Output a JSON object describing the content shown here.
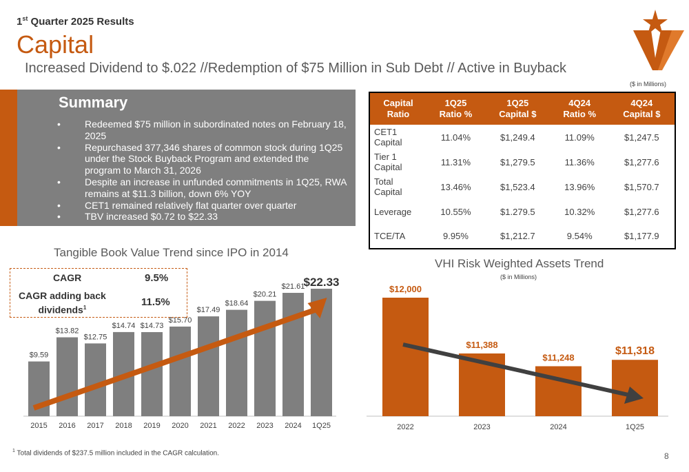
{
  "header": {
    "quarter_prefix": "1",
    "quarter_sup": "st",
    "quarter_rest": " Quarter 2025 Results",
    "title": "Capital",
    "subtitle": "Increased Dividend to $.022 //Redemption of $75 Million in Sub Debt // Active in Buyback",
    "units": "($ in Millions)"
  },
  "summary": {
    "title": "Summary",
    "items": [
      "Redeemed $75 million in subordinated notes on February 18, 2025",
      "Repurchased 377,346 shares of common stock during 1Q25 under the Stock Buyback Program and extended the program to March 31, 2026",
      "Despite an increase in unfunded commitments in 1Q25, RWA remains at $11.3 billion, down 6% YOY",
      "CET1 remained relatively flat quarter over quarter",
      "TBV increased $0.72 to $22.33"
    ]
  },
  "table": {
    "headers": [
      {
        "l1": "Capital",
        "l2": "Ratio"
      },
      {
        "l1": "1Q25",
        "l2": "Ratio %"
      },
      {
        "l1": "1Q25",
        "l2": "Capital $"
      },
      {
        "l1": "4Q24",
        "l2": "Ratio %"
      },
      {
        "l1": "4Q24",
        "l2": "Capital $"
      }
    ],
    "rows": [
      {
        "l1": "CET1",
        "l2": "Capital",
        "v": [
          "11.04%",
          "$1,249.4",
          "11.09%",
          "$1,247.5"
        ]
      },
      {
        "l1": "Tier 1",
        "l2": "Capital",
        "v": [
          "11.31%",
          "$1,279.5",
          "11.36%",
          "$1,277.6"
        ]
      },
      {
        "l1": "Total",
        "l2": "Capital",
        "v": [
          "13.46%",
          "$1,523.4",
          "13.96%",
          "$1,570.7"
        ]
      },
      {
        "l1": "Leverage",
        "l2": "",
        "v": [
          "10.55%",
          "$1.279.5",
          "10.32%",
          "$1,277.6"
        ]
      },
      {
        "l1": "TCE/TA",
        "l2": "",
        "v": [
          "9.95%",
          "$1,212.7",
          "9.54%",
          "$1,177.9"
        ]
      }
    ]
  },
  "cagr": {
    "label1": "CAGR",
    "value1": "9.5%",
    "label2_l1": "CAGR adding back",
    "label2_l2": "dividends",
    "label2_sup": "1",
    "value2": "11.5%"
  },
  "footnote": {
    "sup": "1",
    "text": " Total dividends of $237.5 million included in the CAGR calculation."
  },
  "page_number": "8",
  "colors": {
    "orange": "#C55A11",
    "gray": "#7F7F7F",
    "dark_gray": "#404040"
  },
  "chart_data": [
    {
      "type": "bar",
      "title": "Tangible Book Value Trend since IPO in 2014",
      "categories": [
        "2015",
        "2016",
        "2017",
        "2018",
        "2019",
        "2020",
        "2021",
        "2022",
        "2023",
        "2024",
        "1Q25"
      ],
      "values": [
        9.59,
        13.82,
        12.75,
        14.74,
        14.73,
        15.7,
        17.49,
        18.64,
        20.21,
        21.61,
        22.33
      ],
      "labels": [
        "$9.59",
        "$13.82",
        "$12.75",
        "$14.74",
        "$14.73",
        "$15.70",
        "$17.49",
        "$18.64",
        "$20.21",
        "$21.61",
        "$22.33"
      ],
      "ylim": [
        0,
        23
      ],
      "trend": "up",
      "color": "#7F7F7F",
      "trend_color": "#C55A11",
      "grid": false
    },
    {
      "type": "bar",
      "title": "VHI Risk Weighted Assets Trend",
      "units": "($ in Millions)",
      "categories": [
        "2022",
        "2023",
        "2024",
        "1Q25"
      ],
      "values": [
        12000,
        11388,
        11248,
        11318
      ],
      "labels": [
        "$12,000",
        "$11,388",
        "$11,248",
        "$11,318"
      ],
      "trend": "down",
      "color": "#C55A11",
      "trend_color": "#404040",
      "grid": false
    }
  ]
}
